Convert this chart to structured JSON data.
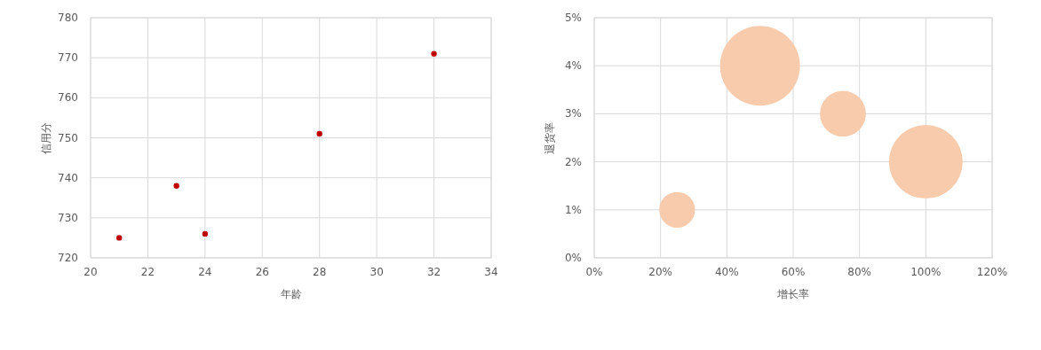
{
  "chart_data": [
    {
      "type": "scatter",
      "xlabel": "年龄",
      "ylabel": "信用分",
      "x": [
        21,
        23,
        24,
        28,
        32
      ],
      "values": [
        725,
        738,
        726,
        751,
        771
      ],
      "color": "#c00000",
      "marker": "circle",
      "xlim": [
        20,
        34
      ],
      "xticks": [
        20,
        22,
        24,
        26,
        28,
        30,
        32,
        34
      ],
      "ylim": [
        720,
        780
      ],
      "yticks": [
        720,
        730,
        740,
        750,
        760,
        770,
        780
      ],
      "grid": true
    },
    {
      "type": "bubble",
      "xlabel": "增长率",
      "ylabel": "退货率",
      "x": [
        25,
        50,
        75,
        100
      ],
      "values": [
        1,
        4,
        3,
        2
      ],
      "sizes": [
        0.2,
        1,
        0.33,
        0.85
      ],
      "color": "#f8cbad",
      "xlim": [
        0,
        120
      ],
      "xticks": [
        {
          "value": 0,
          "label": "0%"
        },
        {
          "value": 20,
          "label": "20%"
        },
        {
          "value": 40,
          "label": "40%"
        },
        {
          "value": 60,
          "label": "60%"
        },
        {
          "value": 80,
          "label": "80%"
        },
        {
          "value": 100,
          "label": "100%"
        },
        {
          "value": 120,
          "label": "120%"
        }
      ],
      "ylim": [
        0,
        5
      ],
      "yticks": [
        {
          "value": 0,
          "label": "0%"
        },
        {
          "value": 1,
          "label": "1%"
        },
        {
          "value": 2,
          "label": "2%"
        },
        {
          "value": 3,
          "label": "3%"
        },
        {
          "value": 4,
          "label": "4%"
        },
        {
          "value": 5,
          "label": "5%"
        }
      ],
      "grid": true
    }
  ]
}
